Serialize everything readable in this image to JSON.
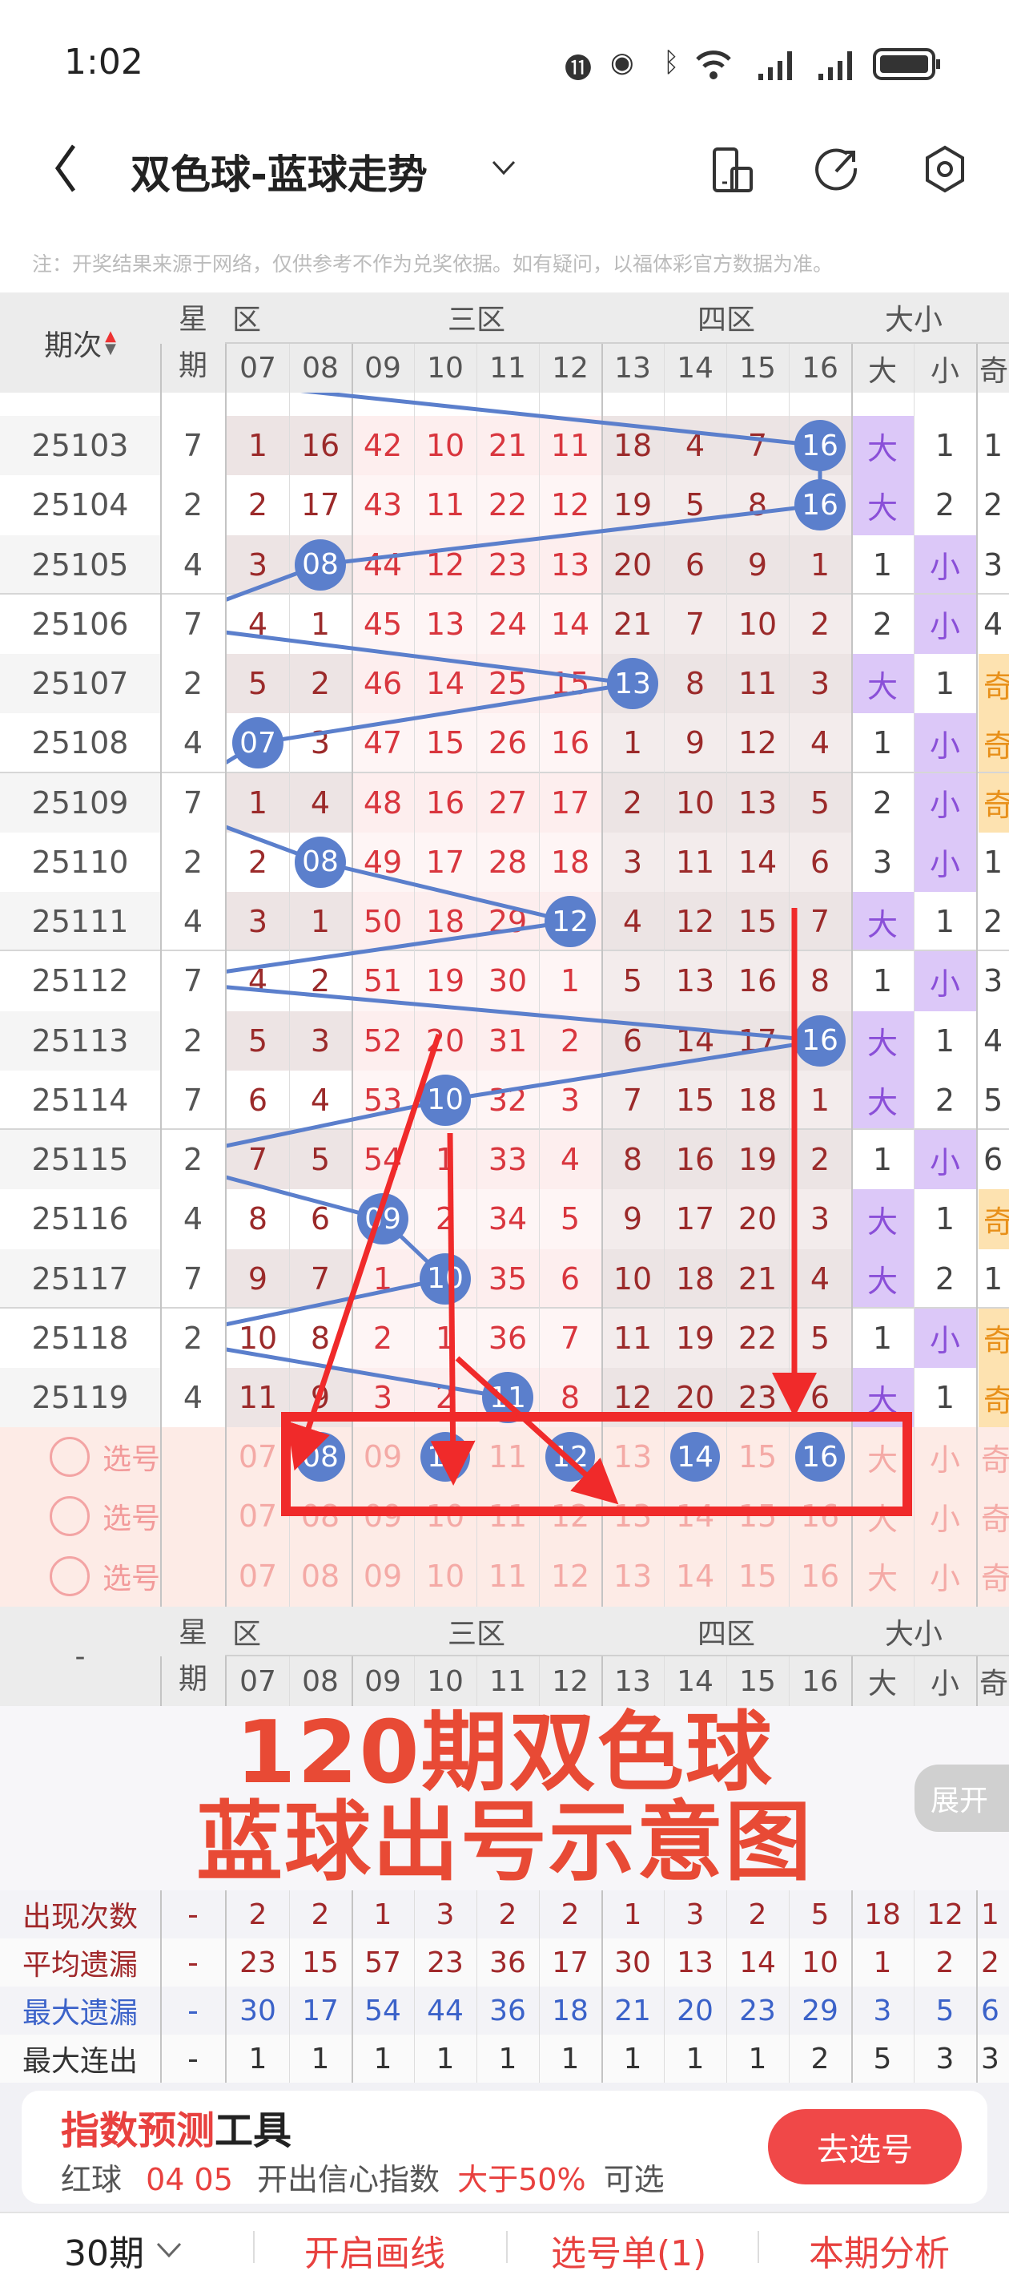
{
  "status_bar": {
    "time": "1:02"
  },
  "nav": {
    "title": "双色球-蓝球走势"
  },
  "note": "注：开奖结果来源于网络，仅供参考不作为兑奖依据。如有疑问，以福体彩官方数据为准。",
  "header": {
    "period_label": "期次",
    "weekday_label": "星期",
    "groups": [
      "区",
      "三区",
      "四区",
      "大小"
    ],
    "columns": [
      "07",
      "08",
      "09",
      "10",
      "11",
      "12",
      "13",
      "14",
      "15",
      "16"
    ],
    "size_columns": [
      "大",
      "小"
    ],
    "odd_partial": "奇"
  },
  "rows": [
    {
      "period": "25103",
      "weekday": "7",
      "cells": [
        "1",
        "16",
        "42",
        "10",
        "21",
        "11",
        "18",
        "4",
        "7",
        "16"
      ],
      "hit": 9,
      "big": "大",
      "small": "1",
      "odd": "1"
    },
    {
      "period": "25104",
      "weekday": "2",
      "cells": [
        "2",
        "17",
        "43",
        "11",
        "22",
        "12",
        "19",
        "5",
        "8",
        "16"
      ],
      "hit": 9,
      "big": "大",
      "small": "2",
      "odd": "2"
    },
    {
      "period": "25105",
      "weekday": "4",
      "cells": [
        "3",
        "08",
        "44",
        "12",
        "23",
        "13",
        "20",
        "6",
        "9",
        "1"
      ],
      "hit": 1,
      "big": "1",
      "small": "小",
      "odd": "3"
    },
    {
      "period": "25106",
      "weekday": "7",
      "cells": [
        "4",
        "1",
        "45",
        "13",
        "24",
        "14",
        "21",
        "7",
        "10",
        "2"
      ],
      "hit": -1,
      "big": "2",
      "small": "小",
      "odd": "4"
    },
    {
      "period": "25107",
      "weekday": "2",
      "cells": [
        "5",
        "2",
        "46",
        "14",
        "25",
        "15",
        "13",
        "8",
        "11",
        "3"
      ],
      "hit": 6,
      "big": "大",
      "small": "1",
      "odd": "奇"
    },
    {
      "period": "25108",
      "weekday": "4",
      "cells": [
        "07",
        "3",
        "47",
        "15",
        "26",
        "16",
        "1",
        "9",
        "12",
        "4"
      ],
      "hit": 0,
      "big": "1",
      "small": "小",
      "odd": "奇"
    },
    {
      "period": "25109",
      "weekday": "7",
      "cells": [
        "1",
        "4",
        "48",
        "16",
        "27",
        "17",
        "2",
        "10",
        "13",
        "5"
      ],
      "hit": -1,
      "big": "2",
      "small": "小",
      "odd": "奇"
    },
    {
      "period": "25110",
      "weekday": "2",
      "cells": [
        "2",
        "08",
        "49",
        "17",
        "28",
        "18",
        "3",
        "11",
        "14",
        "6"
      ],
      "hit": 1,
      "big": "3",
      "small": "小",
      "odd": "1"
    },
    {
      "period": "25111",
      "weekday": "4",
      "cells": [
        "3",
        "1",
        "50",
        "18",
        "29",
        "12",
        "4",
        "12",
        "15",
        "7"
      ],
      "hit": 5,
      "big": "大",
      "small": "1",
      "odd": "2"
    },
    {
      "period": "25112",
      "weekday": "7",
      "cells": [
        "4",
        "2",
        "51",
        "19",
        "30",
        "1",
        "5",
        "13",
        "16",
        "8"
      ],
      "hit": -1,
      "big": "1",
      "small": "小",
      "odd": "3"
    },
    {
      "period": "25113",
      "weekday": "2",
      "cells": [
        "5",
        "3",
        "52",
        "20",
        "31",
        "2",
        "6",
        "14",
        "17",
        "16"
      ],
      "hit": 9,
      "big": "大",
      "small": "1",
      "odd": "4"
    },
    {
      "period": "25114",
      "weekday": "7",
      "cells": [
        "6",
        "4",
        "53",
        "10",
        "32",
        "3",
        "7",
        "15",
        "18",
        "1"
      ],
      "hit": 3,
      "big": "大",
      "small": "2",
      "odd": "5"
    },
    {
      "period": "25115",
      "weekday": "2",
      "cells": [
        "7",
        "5",
        "54",
        "1",
        "33",
        "4",
        "8",
        "16",
        "19",
        "2"
      ],
      "hit": -1,
      "big": "1",
      "small": "小",
      "odd": "6"
    },
    {
      "period": "25116",
      "weekday": "4",
      "cells": [
        "8",
        "6",
        "09",
        "2",
        "34",
        "5",
        "9",
        "17",
        "20",
        "3"
      ],
      "hit": 2,
      "big": "大",
      "small": "1",
      "odd": "奇"
    },
    {
      "period": "25117",
      "weekday": "7",
      "cells": [
        "9",
        "7",
        "1",
        "10",
        "35",
        "6",
        "10",
        "18",
        "21",
        "4"
      ],
      "hit": 3,
      "big": "大",
      "small": "2",
      "odd": "1"
    },
    {
      "period": "25118",
      "weekday": "2",
      "cells": [
        "10",
        "8",
        "2",
        "1",
        "36",
        "7",
        "11",
        "19",
        "22",
        "5"
      ],
      "hit": -1,
      "big": "1",
      "small": "小",
      "odd": "奇"
    },
    {
      "period": "25119",
      "weekday": "4",
      "cells": [
        "11",
        "9",
        "3",
        "2",
        "11",
        "8",
        "12",
        "20",
        "23",
        "6"
      ],
      "hit": 4,
      "big": "大",
      "small": "1",
      "odd": "奇"
    }
  ],
  "selection": {
    "label": "选号",
    "rows": [
      {
        "selected": [
          "08",
          "10",
          "12",
          "14",
          "16"
        ]
      },
      {
        "selected": []
      },
      {
        "selected": []
      }
    ],
    "numbers": [
      "07",
      "08",
      "09",
      "10",
      "11",
      "12",
      "13",
      "14",
      "15",
      "16"
    ],
    "big": "大",
    "small": "小",
    "odd": "奇"
  },
  "stats": {
    "corner": "-",
    "expand_label": "展开",
    "rows": [
      {
        "label": "出现次数",
        "color": "#a0282a",
        "weekday": "-",
        "values": [
          "2",
          "2",
          "1",
          "3",
          "2",
          "2",
          "1",
          "3",
          "2",
          "5"
        ],
        "big": "18",
        "small": "12",
        "odd": "1"
      },
      {
        "label": "平均遗漏",
        "color": "#a0282a",
        "weekday": "-",
        "values": [
          "23",
          "15",
          "57",
          "23",
          "36",
          "17",
          "30",
          "13",
          "14",
          "10"
        ],
        "big": "1",
        "small": "2",
        "odd": "2"
      },
      {
        "label": "最大遗漏",
        "color": "#3b62c9",
        "weekday": "-",
        "values": [
          "30",
          "17",
          "54",
          "44",
          "36",
          "18",
          "21",
          "20",
          "23",
          "29"
        ],
        "big": "3",
        "small": "5",
        "odd": "6"
      },
      {
        "label": "最大连出",
        "color": "#333333",
        "weekday": "-",
        "values": [
          "1",
          "1",
          "1",
          "1",
          "1",
          "1",
          "1",
          "1",
          "1",
          "2"
        ],
        "big": "5",
        "small": "3",
        "odd": "3"
      }
    ]
  },
  "overlay": {
    "line1": "120期双色球",
    "line2": "蓝球出号示意图",
    "color": "#e84a35"
  },
  "card": {
    "title_red": "指数预测",
    "title_dark": "工具",
    "ball_label": "红球",
    "ball_numbers": "04 05",
    "index_label": "开出信心指数",
    "threshold": "大于50%",
    "suffix": "可选",
    "button": "去选号"
  },
  "bottom_bar": {
    "period_select": "30期",
    "draw_lines": "开启画线",
    "pick_list": "选号单(1)",
    "analysis": "本期分析"
  },
  "colors": {
    "ball_blue": "#5b7fcc",
    "accent_red": "#e8413f",
    "big_purple": "#dcc8f8",
    "odd_orange": "#fde2b0"
  }
}
